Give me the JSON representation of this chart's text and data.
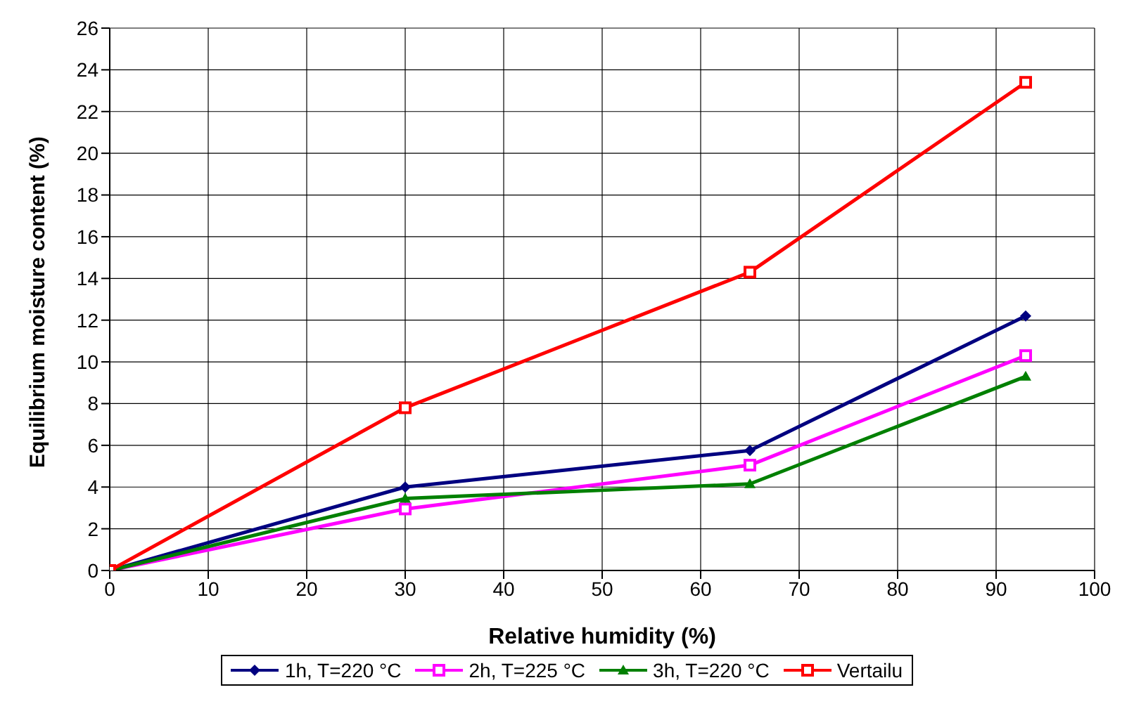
{
  "chart_data": {
    "type": "line",
    "xlabel": "Relative humidity (%)",
    "ylabel": "Equilibrium moisture content (%)",
    "x": [
      0,
      30,
      65,
      93
    ],
    "series": [
      {
        "name": "1h, T=220 °C",
        "color": "#000080",
        "marker": "diamond",
        "values": [
          0,
          4.0,
          5.75,
          12.2
        ]
      },
      {
        "name": "2h, T=225 °C",
        "color": "#ff00ff",
        "marker": "square",
        "values": [
          0,
          2.95,
          5.05,
          10.3
        ]
      },
      {
        "name": "3h, T=220 °C",
        "color": "#008000",
        "marker": "triangle",
        "values": [
          0,
          3.45,
          4.15,
          9.3
        ]
      },
      {
        "name": "Vertailu",
        "color": "#ff0000",
        "marker": "square",
        "values": [
          0,
          7.8,
          14.3,
          23.4
        ]
      }
    ],
    "xlim": [
      0,
      100
    ],
    "xticks": [
      0,
      10,
      20,
      30,
      40,
      50,
      60,
      70,
      80,
      90,
      100
    ],
    "ylim": [
      0,
      26
    ],
    "yticks": [
      0,
      2,
      4,
      6,
      8,
      10,
      12,
      14,
      16,
      18,
      20,
      22,
      24,
      26
    ],
    "grid": true,
    "legend": "bottom",
    "line_style": "solid"
  }
}
